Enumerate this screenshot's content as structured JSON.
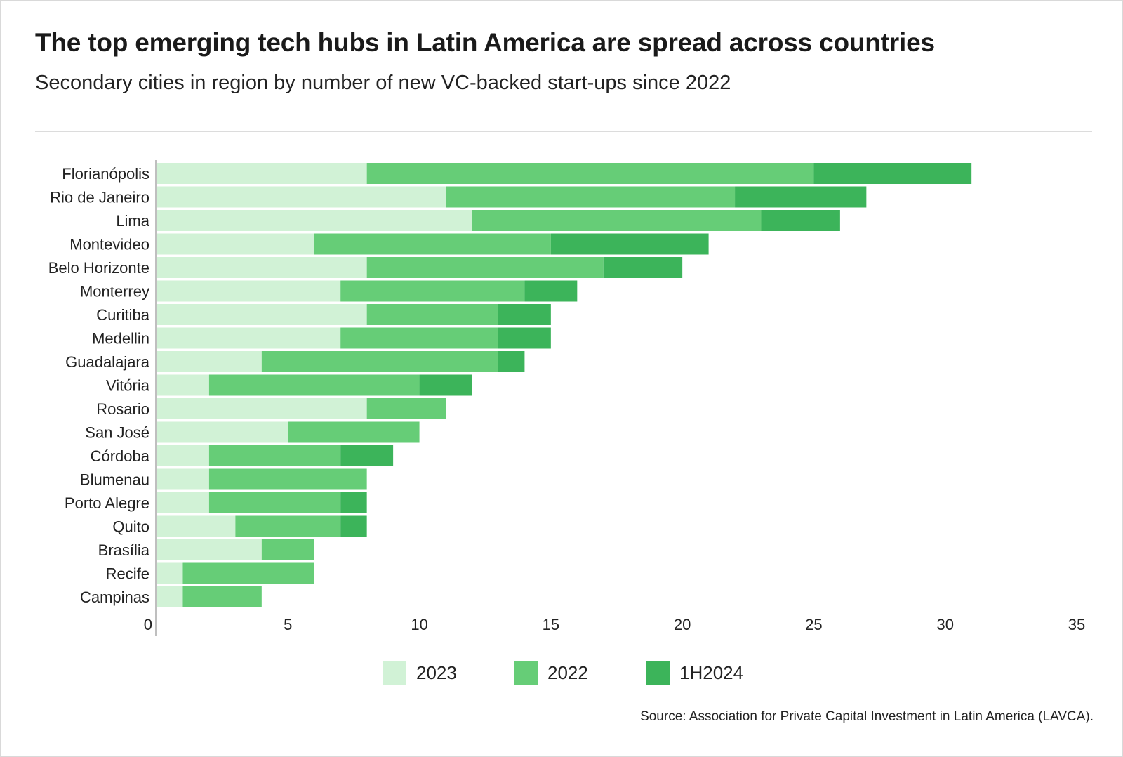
{
  "title": "The top emerging tech hubs in Latin America are spread across countries",
  "subtitle": "Secondary cities in region by number of new VC-backed start-ups since 2022",
  "source": "Source: Association for Private Capital Investment in Latin America (LAVCA).",
  "colors": {
    "2023": "#d1f2d6",
    "2022": "#66cd77",
    "1H2024": "#3cb45a"
  },
  "chart_data": {
    "type": "bar",
    "orientation": "horizontal",
    "stacked": true,
    "categories": [
      "Florianópolis",
      "Rio de Janeiro",
      "Lima",
      "Montevideo",
      "Belo Horizonte",
      "Monterrey",
      "Curitiba",
      "Medellin",
      "Guadalajara",
      "Vitória",
      "Rosario",
      "San José",
      "Córdoba",
      "Blumenau",
      "Porto Alegre",
      "Quito",
      "Brasília",
      "Recife",
      "Campinas"
    ],
    "series": [
      {
        "name": "2023",
        "values": [
          8,
          11,
          12,
          6,
          8,
          7,
          8,
          7,
          4,
          2,
          8,
          5,
          2,
          2,
          2,
          3,
          4,
          1,
          1
        ]
      },
      {
        "name": "2022",
        "values": [
          17,
          11,
          11,
          9,
          9,
          7,
          5,
          6,
          9,
          8,
          3,
          5,
          5,
          6,
          5,
          4,
          2,
          5,
          3
        ]
      },
      {
        "name": "1H2024",
        "values": [
          6,
          5,
          3,
          6,
          3,
          2,
          2,
          2,
          1,
          2,
          0,
          0,
          2,
          0,
          1,
          1,
          0,
          0,
          0
        ]
      }
    ],
    "xlim": [
      0,
      35
    ],
    "xticks": [
      0,
      5,
      10,
      15,
      20,
      25,
      30,
      35
    ],
    "legend": [
      "2023",
      "2022",
      "1H2024"
    ],
    "legend_position": "bottom"
  }
}
